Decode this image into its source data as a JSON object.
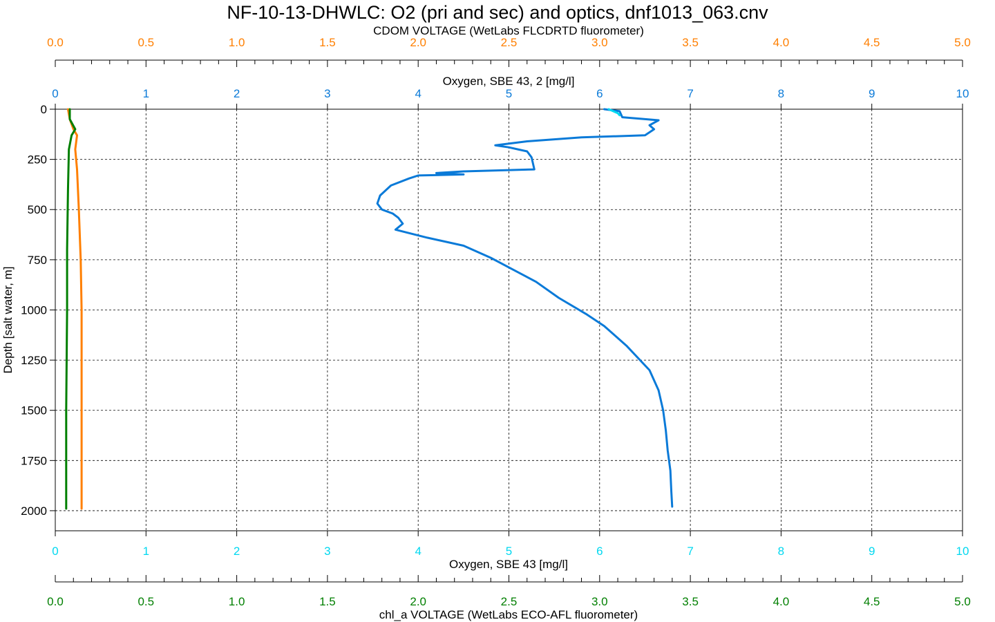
{
  "title": "NF-10-13-DHWLC: O2 (pri and sec) and optics, dnf1013_063.cnv",
  "colors": {
    "cdom": "#ff7f00",
    "oxygen2": "#0a7ad8",
    "oxygen1": "#00d8f0",
    "chl": "#007f00",
    "depth": "#000000"
  },
  "axes": {
    "cdom": {
      "label": "CDOM VOLTAGE (WetLabs FLCDRTD fluorometer)",
      "range": [
        0,
        5
      ],
      "ticks": [
        "0.0",
        "0.5",
        "1.0",
        "1.5",
        "2.0",
        "2.5",
        "3.0",
        "3.5",
        "4.0",
        "4.5",
        "5.0"
      ]
    },
    "oxygen2": {
      "label": "Oxygen, SBE 43, 2 [mg/l]",
      "range": [
        0,
        10
      ],
      "ticks": [
        "0",
        "1",
        "2",
        "3",
        "4",
        "5",
        "6",
        "7",
        "8",
        "9",
        "10"
      ]
    },
    "oxygen1": {
      "label": "Oxygen, SBE 43 [mg/l]",
      "range": [
        0,
        10
      ],
      "ticks": [
        "0",
        "1",
        "2",
        "3",
        "4",
        "5",
        "6",
        "7",
        "8",
        "9",
        "10"
      ]
    },
    "chl": {
      "label": "chl_a VOLTAGE (WetLabs ECO-AFL fluorometer)",
      "range": [
        0,
        5
      ],
      "ticks": [
        "0.0",
        "0.5",
        "1.0",
        "1.5",
        "2.0",
        "2.5",
        "3.0",
        "3.5",
        "4.0",
        "4.5",
        "5.0"
      ]
    },
    "depth": {
      "label": "Depth [salt water, m]",
      "range": [
        0,
        2100
      ],
      "inverted": true,
      "ticks": [
        "0",
        "250",
        "500",
        "750",
        "1000",
        "1250",
        "1500",
        "1750",
        "2000"
      ]
    }
  },
  "chart_data": {
    "type": "line",
    "title": "NF-10-13-DHWLC: O2 (pri and sec) and optics, dnf1013_063.cnv",
    "ylabel": "Depth [salt water, m]",
    "ylim": [
      2100,
      0
    ],
    "grid": true,
    "series": [
      {
        "name": "Oxygen, SBE 43, 2 [mg/l]",
        "axis": "oxygen2",
        "color": "#0a7ad8",
        "points": [
          [
            6.05,
            0
          ],
          [
            6.22,
            10
          ],
          [
            6.25,
            40
          ],
          [
            6.65,
            55
          ],
          [
            6.55,
            80
          ],
          [
            6.6,
            100
          ],
          [
            6.5,
            130
          ],
          [
            5.8,
            140
          ],
          [
            5.2,
            160
          ],
          [
            4.85,
            180
          ],
          [
            5.0,
            190
          ],
          [
            5.1,
            200
          ],
          [
            5.2,
            210
          ],
          [
            5.25,
            240
          ],
          [
            5.28,
            300
          ],
          [
            4.5,
            310
          ],
          [
            4.2,
            318
          ],
          [
            4.5,
            325
          ],
          [
            4.0,
            330
          ],
          [
            3.9,
            345
          ],
          [
            3.7,
            380
          ],
          [
            3.58,
            430
          ],
          [
            3.55,
            470
          ],
          [
            3.6,
            500
          ],
          [
            3.72,
            520
          ],
          [
            3.78,
            540
          ],
          [
            3.83,
            570
          ],
          [
            3.75,
            600
          ],
          [
            4.1,
            640
          ],
          [
            4.5,
            680
          ],
          [
            4.8,
            740
          ],
          [
            5.05,
            800
          ],
          [
            5.3,
            860
          ],
          [
            5.55,
            940
          ],
          [
            5.85,
            1020
          ],
          [
            6.05,
            1080
          ],
          [
            6.3,
            1180
          ],
          [
            6.55,
            1300
          ],
          [
            6.65,
            1400
          ],
          [
            6.7,
            1500
          ],
          [
            6.73,
            1600
          ],
          [
            6.75,
            1700
          ],
          [
            6.78,
            1800
          ],
          [
            6.79,
            1900
          ],
          [
            6.8,
            1980
          ]
        ]
      },
      {
        "name": "Oxygen, SBE 43 [mg/l]",
        "axis": "oxygen1",
        "color": "#00d8f0",
        "points": [
          [
            6.1,
            0
          ],
          [
            6.2,
            20
          ],
          [
            6.22,
            30
          ]
        ]
      },
      {
        "name": "CDOM VOLTAGE (WetLabs FLCDRTD fluorometer)",
        "axis": "cdom",
        "color": "#ff7f00",
        "points": [
          [
            0.07,
            0
          ],
          [
            0.08,
            50
          ],
          [
            0.1,
            100
          ],
          [
            0.12,
            130
          ],
          [
            0.11,
            200
          ],
          [
            0.12,
            300
          ],
          [
            0.13,
            500
          ],
          [
            0.14,
            750
          ],
          [
            0.145,
            1000
          ],
          [
            0.145,
            1500
          ],
          [
            0.145,
            1990
          ]
        ]
      },
      {
        "name": "chl_a VOLTAGE (WetLabs ECO-AFL fluorometer)",
        "axis": "chl",
        "color": "#007f00",
        "points": [
          [
            0.08,
            0
          ],
          [
            0.08,
            50
          ],
          [
            0.11,
            100
          ],
          [
            0.09,
            130
          ],
          [
            0.075,
            200
          ],
          [
            0.07,
            400
          ],
          [
            0.065,
            700
          ],
          [
            0.065,
            1000
          ],
          [
            0.06,
            1500
          ],
          [
            0.06,
            1990
          ]
        ]
      }
    ]
  }
}
